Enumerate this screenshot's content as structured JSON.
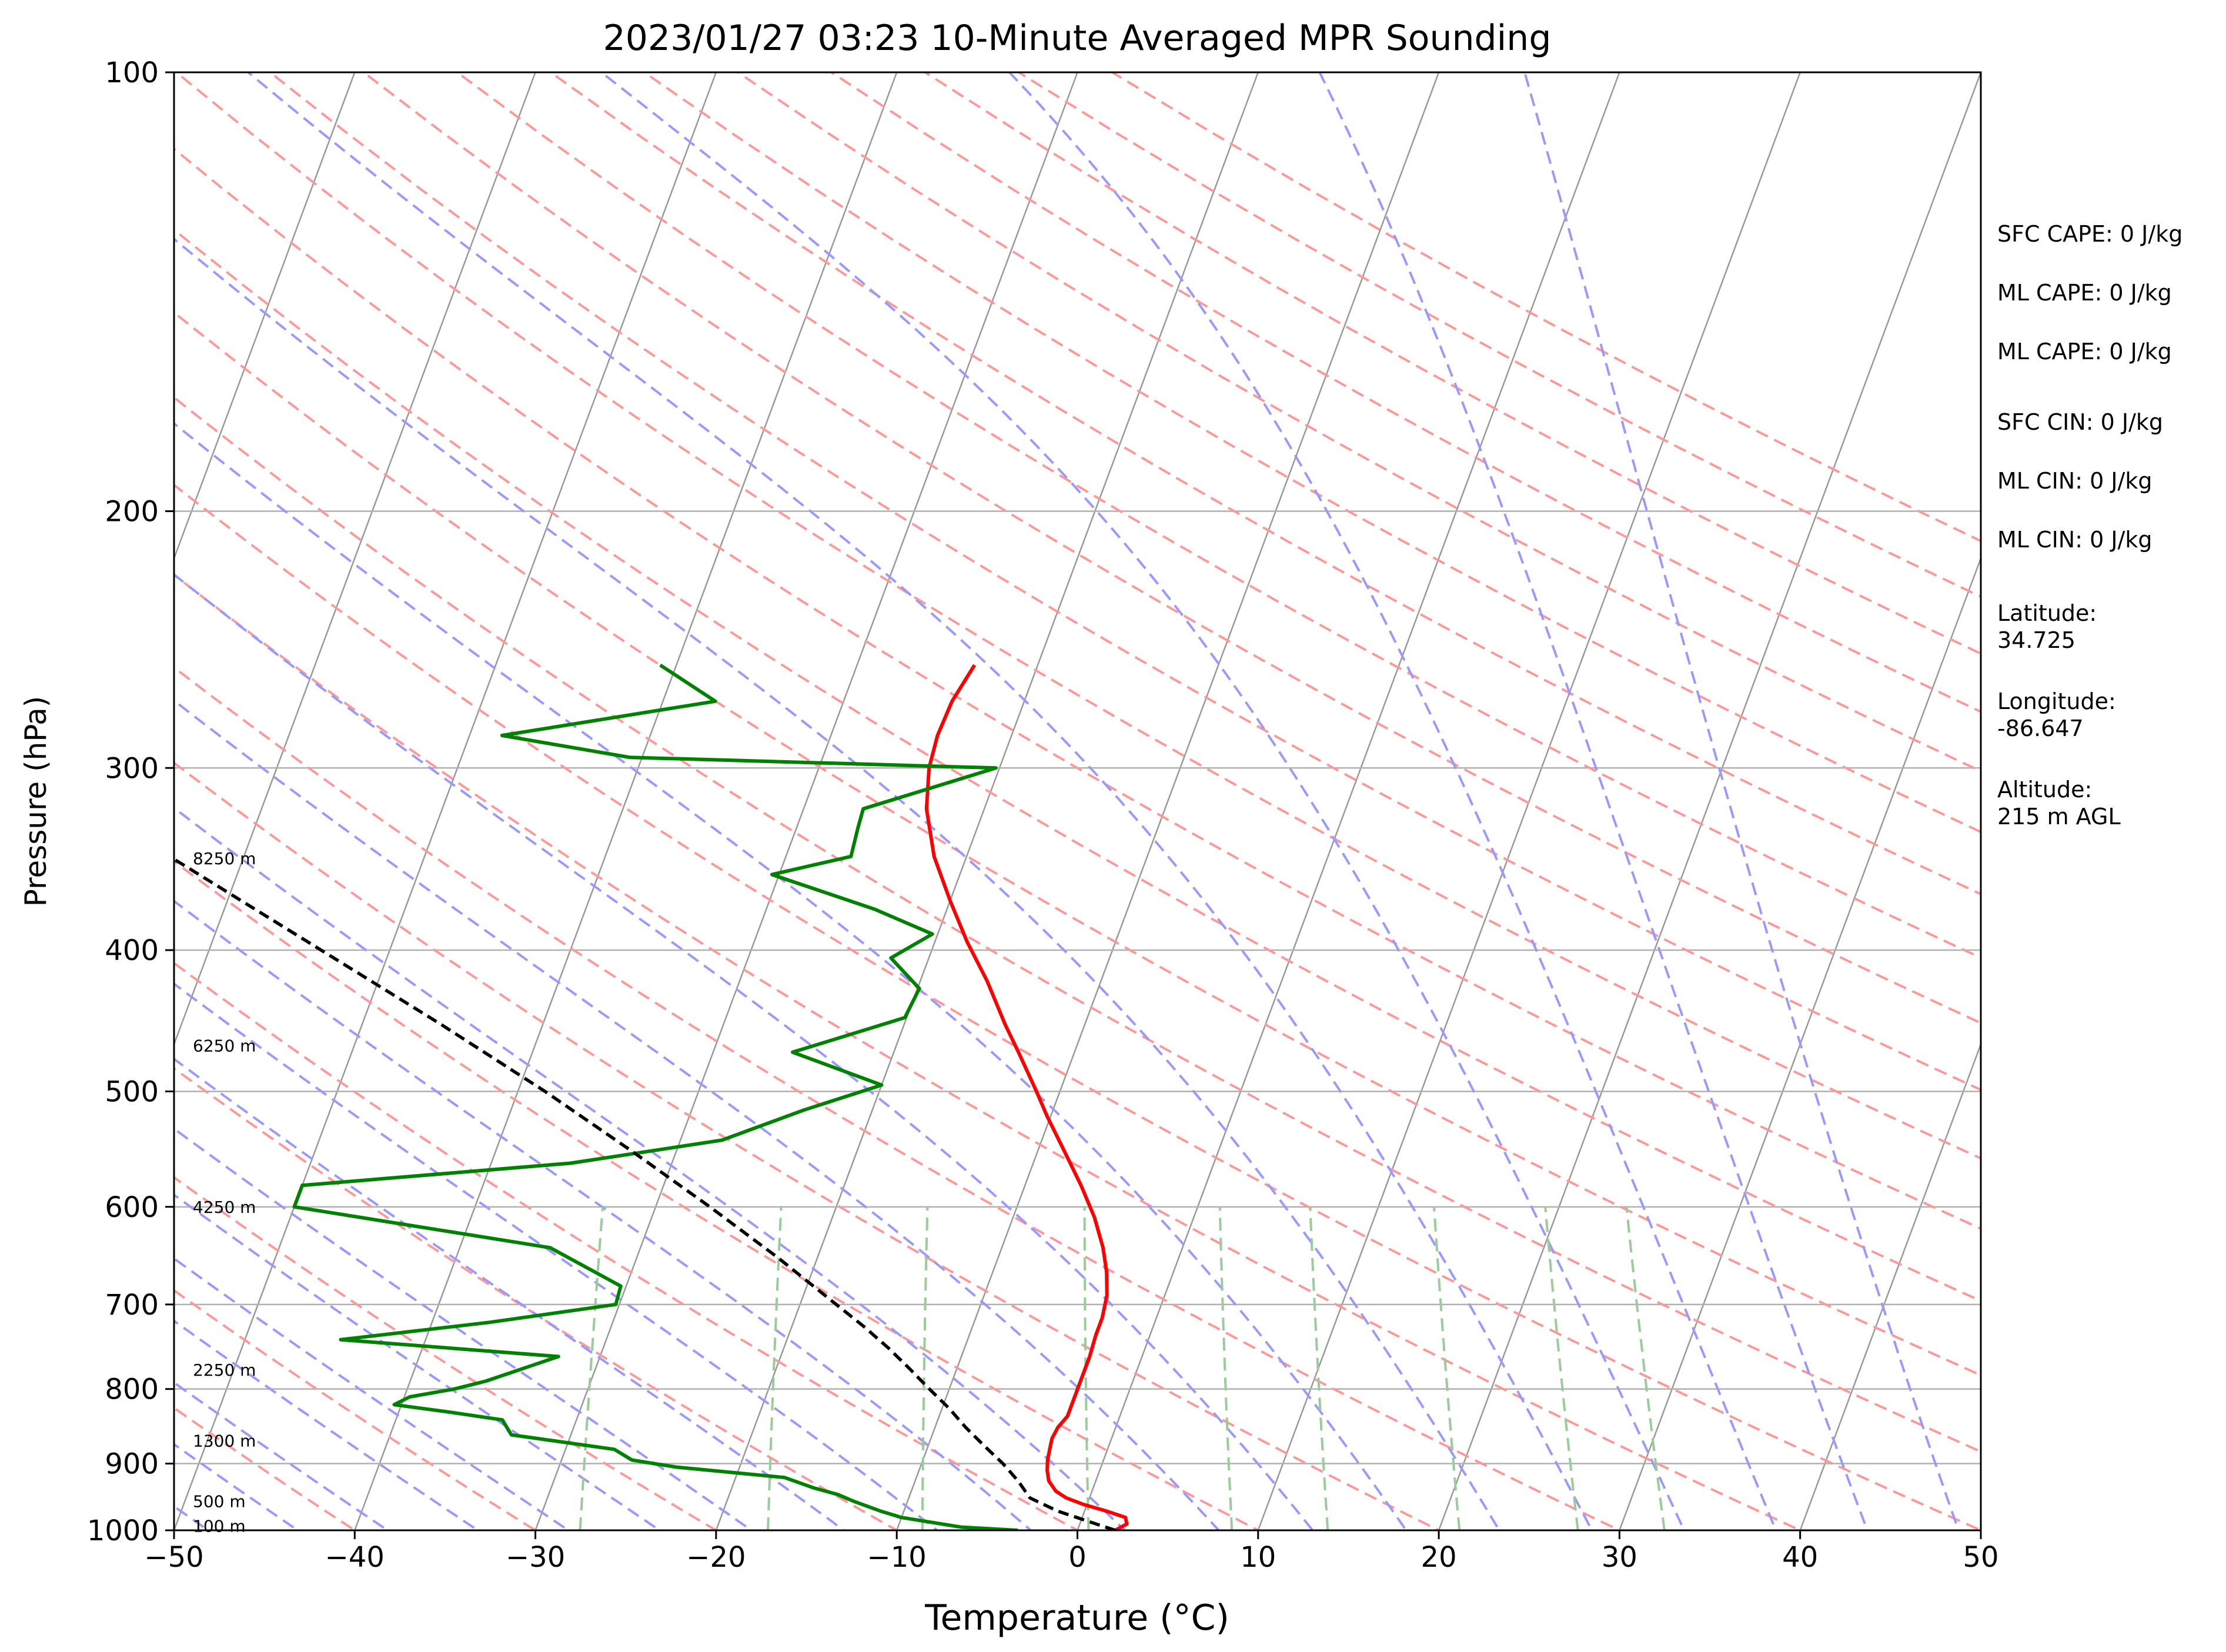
{
  "chart_data": {
    "type": "line",
    "subtype": "skew-t log-p sounding",
    "title": "2023/01/27 03:23 10-Minute Averaged MPR Sounding",
    "xlabel": "Temperature (°C)",
    "ylabel": "Pressure (hPa)",
    "xlim": [
      -50,
      50
    ],
    "ylim": [
      1000,
      100
    ],
    "y_scale": "log",
    "x_ticks": [
      -50,
      -40,
      -30,
      -20,
      -10,
      0,
      10,
      20,
      30,
      40,
      50
    ],
    "y_ticks": [
      1000,
      900,
      800,
      700,
      600,
      500,
      400,
      300,
      200,
      100
    ],
    "grid": true,
    "colors": {
      "temperature": "#ff0000",
      "dewpoint": "#008000",
      "parcel": "#000000",
      "dry_adiabats": "#ff9999",
      "moist_adiabats": "#9999ff",
      "mixing_ratio": "#99cc99",
      "isotherms": "#999999",
      "isobars": "#b0b0b0"
    },
    "series": [
      {
        "role": "temperature",
        "pressure": [
          1000,
          990,
          980,
          970,
          960,
          950,
          940,
          925,
          910,
          895,
          880,
          865,
          850,
          835,
          820,
          805,
          790,
          760,
          735,
          715,
          690,
          665,
          640,
          610,
          580,
          550,
          520,
          500,
          470,
          450,
          420,
          395,
          370,
          345,
          320,
          300,
          285,
          270,
          255
        ],
        "values": [
          2.1,
          2.6,
          2.4,
          1.2,
          -0.2,
          -1.3,
          -2.0,
          -2.6,
          -2.9,
          -3.1,
          -3.2,
          -3.3,
          -3.2,
          -2.9,
          -2.9,
          -2.9,
          -2.9,
          -2.9,
          -3.0,
          -3.0,
          -3.2,
          -3.7,
          -4.4,
          -5.5,
          -6.9,
          -8.5,
          -10.2,
          -11.3,
          -13.1,
          -14.4,
          -16.3,
          -18.2,
          -20.0,
          -21.8,
          -23.2,
          -23.9,
          -24.1,
          -24.0,
          -23.5
        ]
      },
      {
        "role": "dewpoint",
        "pressure": [
          1000,
          995,
          980,
          970,
          955,
          945,
          935,
          920,
          905,
          895,
          880,
          860,
          840,
          830,
          820,
          810,
          800,
          790,
          760,
          740,
          720,
          700,
          680,
          640,
          600,
          580,
          560,
          540,
          515,
          495,
          470,
          445,
          425,
          405,
          390,
          375,
          355,
          345,
          330,
          320,
          300,
          295,
          285,
          270,
          255
        ],
        "values": [
          -3.3,
          -6.5,
          -10.0,
          -11.3,
          -13.0,
          -14.0,
          -15.5,
          -17.3,
          -23.5,
          -26.1,
          -27.3,
          -33.3,
          -34.1,
          -37.1,
          -40.4,
          -39.7,
          -37.4,
          -35.8,
          -32.3,
          -44.7,
          -36.8,
          -30.2,
          -30.3,
          -35.0,
          -50.0,
          -50.0,
          -35.6,
          -27.7,
          -23.8,
          -20.0,
          -25.6,
          -20.1,
          -19.9,
          -22.1,
          -20.3,
          -24.0,
          -30.4,
          -26.4,
          -26.6,
          -26.7,
          -20.2,
          -40.7,
          -48.2,
          -37.1,
          -40.9
        ]
      },
      {
        "role": "parcel",
        "pressure": [
          1000,
          990,
          970,
          950,
          925,
          900,
          875,
          850,
          825,
          800,
          775,
          750,
          725,
          700,
          650,
          600,
          550,
          500,
          450,
          400,
          350,
          300
        ],
        "values": [
          2.1,
          0.9,
          -1.5,
          -3.3,
          -4.3,
          -5.5,
          -6.9,
          -8.3,
          -9.6,
          -11.1,
          -12.6,
          -14.2,
          -16.0,
          -18.0,
          -22.2,
          -27.0,
          -32.4,
          -38.5,
          -45.6,
          -53.8,
          -63.1,
          -74.0
        ]
      }
    ],
    "height_labels": [
      {
        "pressure": 993,
        "text": "100 m"
      },
      {
        "pressure": 955,
        "text": "500 m"
      },
      {
        "pressure": 868,
        "text": "1300 m"
      },
      {
        "pressure": 776,
        "text": "2250 m"
      },
      {
        "pressure": 600,
        "text": "4250 m"
      },
      {
        "pressure": 465,
        "text": "6250 m"
      },
      {
        "pressure": 346,
        "text": "8250 m"
      }
    ],
    "parameters": [
      "SFC CAPE: 0 J/kg",
      "ML CAPE: 0 J/kg",
      "ML CAPE: 0 J/kg",
      "SFC CIN: 0 J/kg",
      "ML CIN: 0 J/kg",
      "ML CIN: 0 J/kg",
      "Latitude:\n34.725",
      "Longitude:\n-86.647",
      "Altitude:\n215 m AGL"
    ]
  }
}
